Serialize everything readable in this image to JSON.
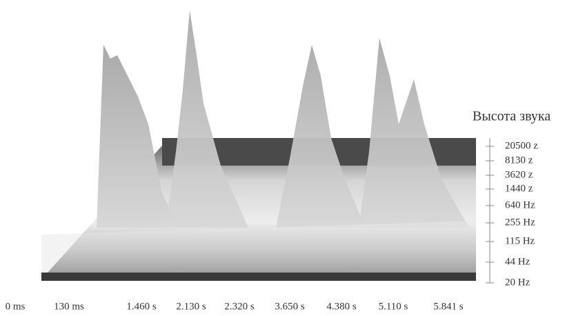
{
  "axis_title": "Высота звука",
  "time_labels": [
    "0 ms",
    "130 ms",
    "1.460 s",
    "2.130 s",
    "2.320 s",
    "3.650 s",
    "4.380 s",
    "5.110 s",
    "5.841 s"
  ],
  "frequency_labels": [
    "20500 z",
    "8130 z",
    "3620 z",
    "1440 z",
    "640 Hz",
    "255 Hz",
    "115 Hz",
    "44 Hz",
    "20 Hz"
  ]
}
